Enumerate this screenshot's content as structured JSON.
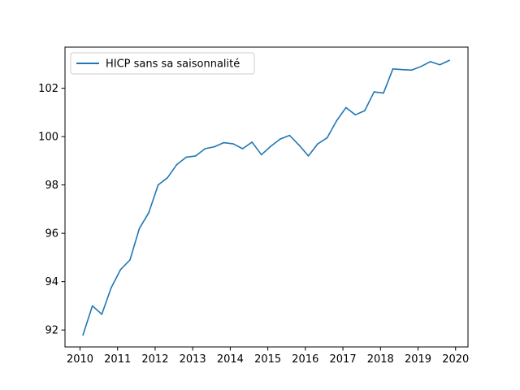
{
  "chart_data": {
    "type": "line",
    "title": "",
    "xlabel": "",
    "ylabel": "",
    "xlim": [
      2009.6,
      2020.33
    ],
    "ylim": [
      91.3,
      103.7
    ],
    "x_ticks": [
      2010,
      2011,
      2012,
      2013,
      2014,
      2015,
      2016,
      2017,
      2018,
      2019,
      2020
    ],
    "y_ticks": [
      92,
      94,
      96,
      98,
      100,
      102
    ],
    "x_tick_labels": [
      "2010",
      "2011",
      "2012",
      "2013",
      "2014",
      "2015",
      "2016",
      "2017",
      "2018",
      "2019",
      "2020"
    ],
    "y_tick_labels": [
      "92",
      "94",
      "96",
      "98",
      "100",
      "102"
    ],
    "grid": false,
    "legend_position": "upper-left",
    "series": [
      {
        "name": "HICP sans sa saisonnalité",
        "color": "#1f77b4",
        "x": [
          2010.08,
          2010.33,
          2010.58,
          2010.83,
          2011.08,
          2011.33,
          2011.58,
          2011.83,
          2012.08,
          2012.33,
          2012.58,
          2012.83,
          2013.08,
          2013.33,
          2013.58,
          2013.83,
          2014.08,
          2014.33,
          2014.58,
          2014.83,
          2015.08,
          2015.33,
          2015.58,
          2015.83,
          2016.08,
          2016.33,
          2016.58,
          2016.83,
          2017.08,
          2017.33,
          2017.58,
          2017.83,
          2018.08,
          2018.33,
          2018.58,
          2018.83,
          2019.08,
          2019.33,
          2019.58,
          2019.83
        ],
        "y": [
          91.8,
          93.0,
          92.65,
          93.75,
          94.5,
          94.9,
          96.2,
          96.85,
          98.0,
          98.3,
          98.85,
          99.15,
          99.2,
          99.5,
          99.58,
          99.75,
          99.7,
          99.5,
          99.77,
          99.25,
          99.6,
          99.9,
          100.05,
          99.65,
          99.2,
          99.7,
          99.95,
          100.65,
          101.2,
          100.9,
          101.07,
          101.85,
          101.8,
          102.8,
          102.77,
          102.75,
          102.9,
          103.1,
          102.97,
          103.15
        ]
      }
    ]
  }
}
